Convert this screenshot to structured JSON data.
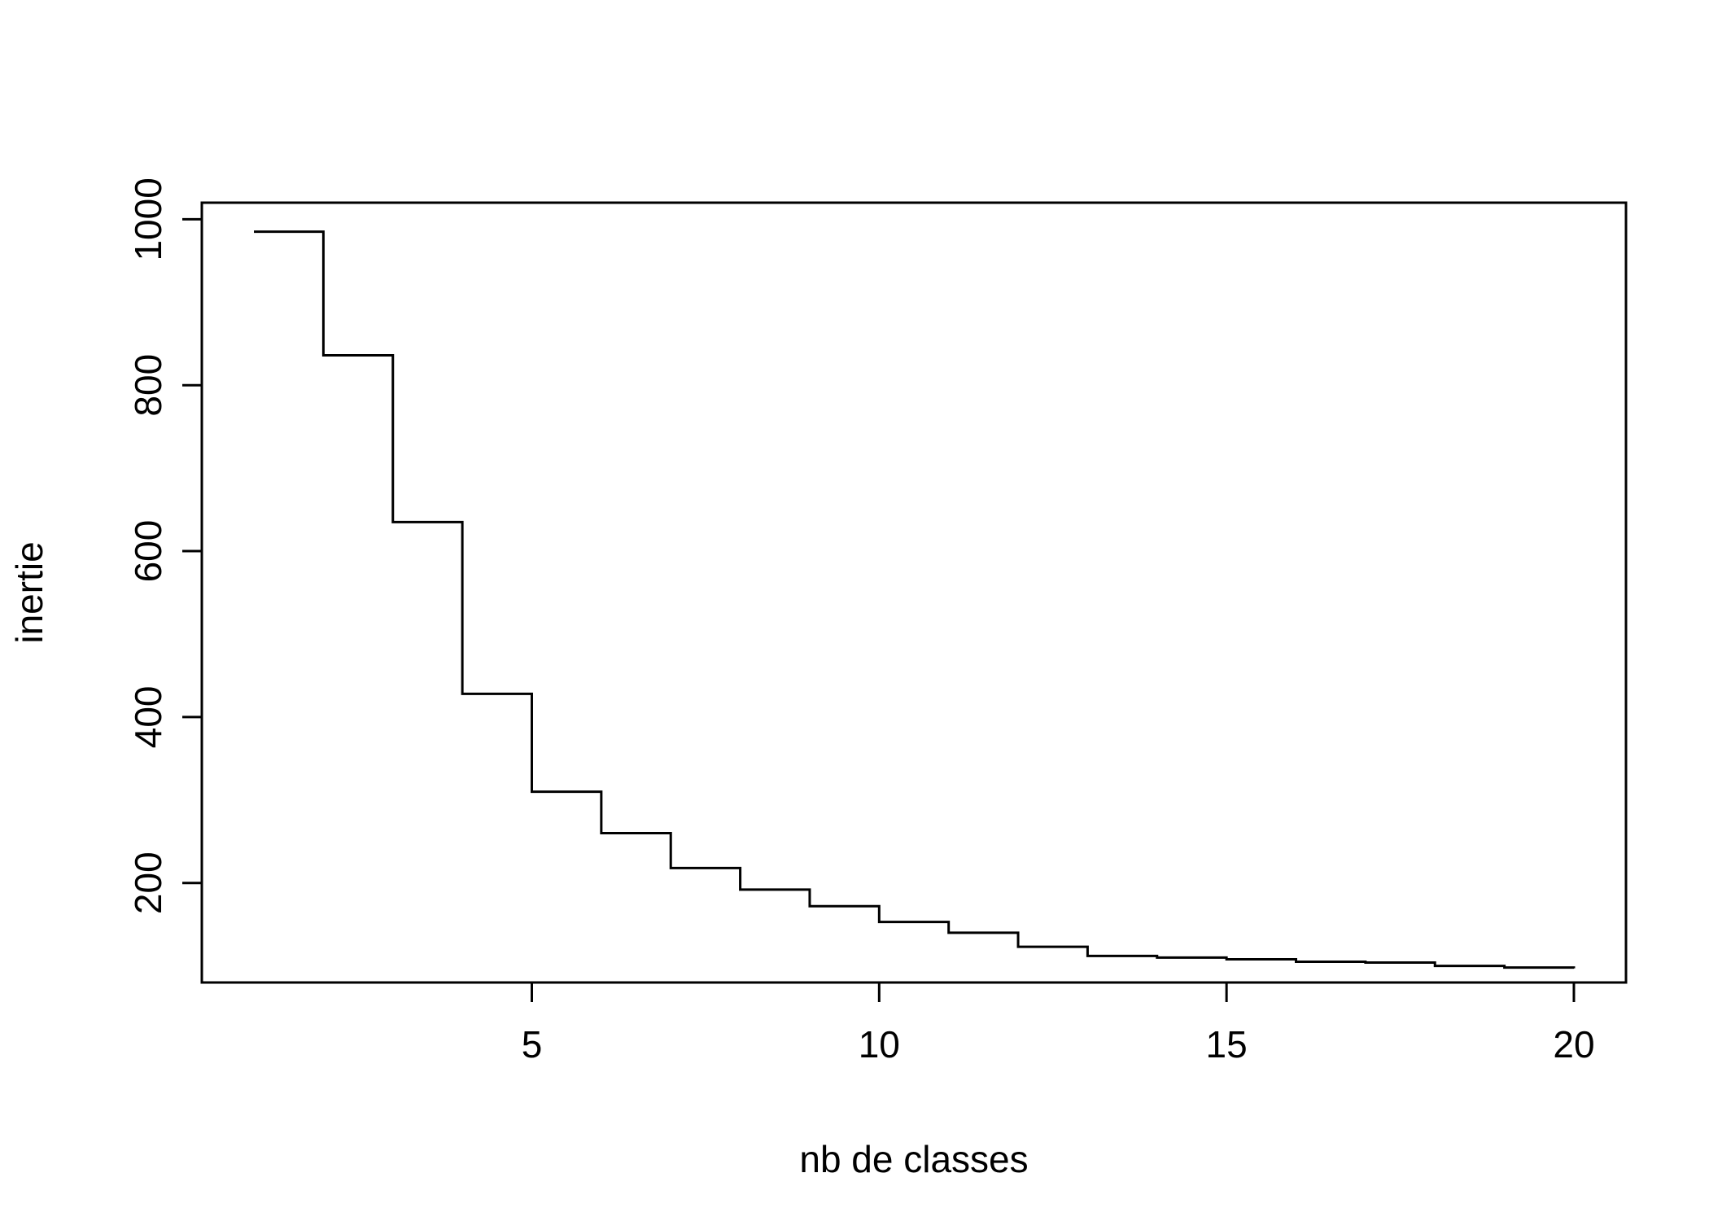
{
  "chart_data": {
    "type": "line",
    "step": true,
    "title": "",
    "xlabel": "nb de classes",
    "ylabel": "inertie",
    "xlim": [
      0.25,
      20.75
    ],
    "ylim": [
      80,
      1020
    ],
    "x_ticks": [
      5,
      10,
      15,
      20
    ],
    "y_ticks": [
      200,
      400,
      600,
      800,
      1000
    ],
    "grid": false,
    "series": [
      {
        "x": [
          1,
          2,
          3,
          4,
          5,
          6,
          7,
          8,
          9,
          10,
          11,
          12,
          13,
          14,
          15,
          16,
          17,
          18,
          19,
          20
        ],
        "y": [
          985,
          836,
          635,
          428,
          310,
          260,
          218,
          192,
          172,
          153,
          140,
          123,
          112,
          110,
          108,
          105,
          104,
          100,
          98,
          97
        ]
      }
    ],
    "colors": {
      "line": "#000000",
      "axis": "#000000",
      "background": "#ffffff"
    }
  }
}
